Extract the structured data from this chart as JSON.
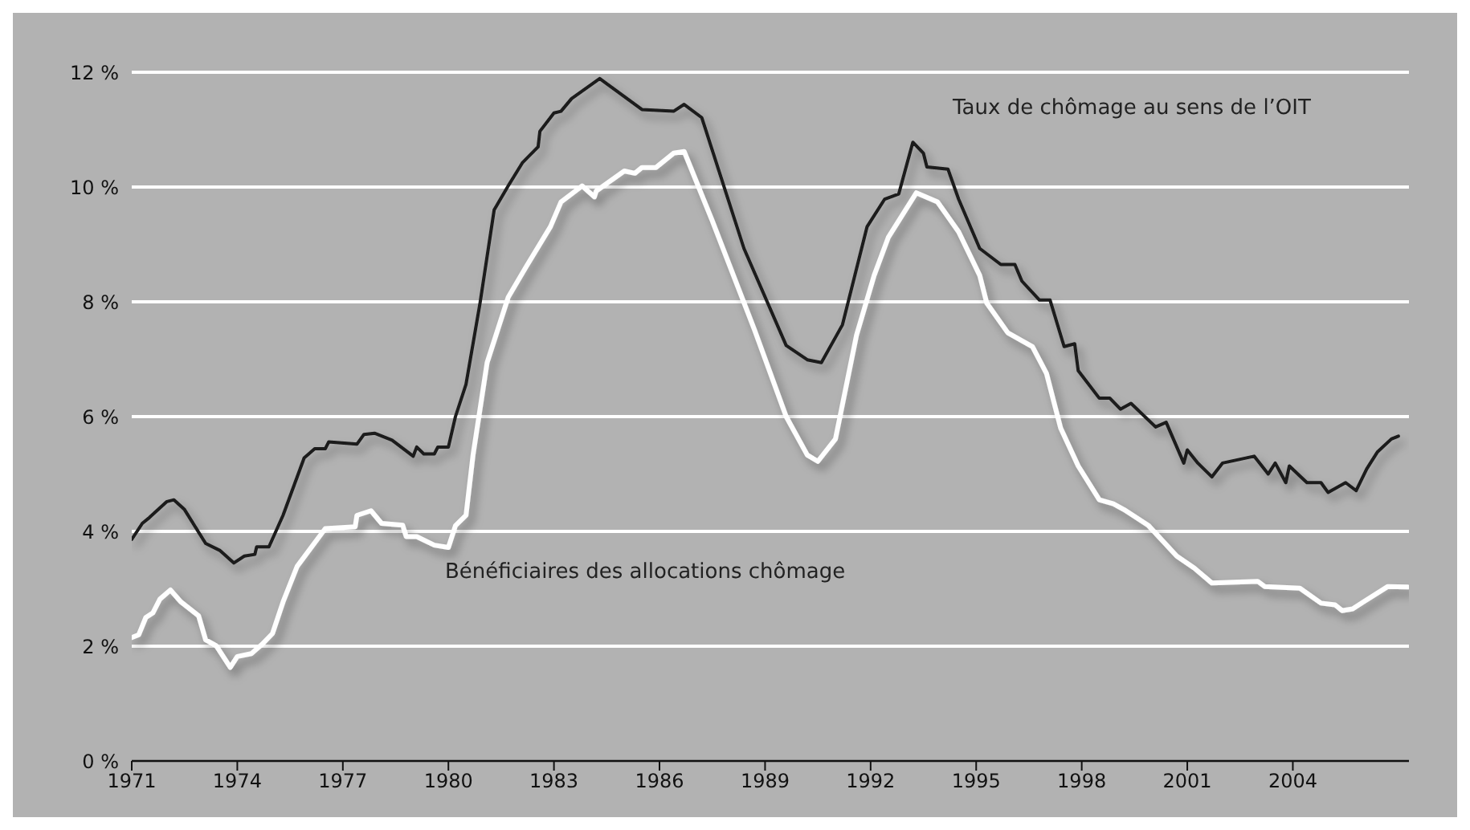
{
  "chart_data": {
    "type": "line",
    "xlim": [
      1971,
      2007.3
    ],
    "xticks": [
      1971,
      1974,
      1977,
      1980,
      1983,
      1986,
      1989,
      1992,
      1995,
      1998,
      2001,
      2004
    ],
    "ylim": [
      0,
      12
    ],
    "yticks": [
      {
        "value": 0,
        "label": "0 %"
      },
      {
        "value": 2,
        "label": "2 %"
      },
      {
        "value": 4,
        "label": "4 %"
      },
      {
        "value": 6,
        "label": "6 %"
      },
      {
        "value": 8,
        "label": "8 %"
      },
      {
        "value": 10,
        "label": "10 %"
      },
      {
        "value": 12,
        "label": "12 %"
      }
    ],
    "grid": "y",
    "legend": false,
    "marker": "none",
    "line_style": "solid",
    "annotations": [
      "Taux de chômage au sens de l’OIT",
      "Bénéficiaires des allocations chômage"
    ],
    "series": [
      {
        "color": "#1a1a1a",
        "x": [
          1971.0,
          1971.3,
          1971.5,
          1972.0,
          1972.2,
          1972.5,
          1973.1,
          1973.5,
          1973.9,
          1974.2,
          1974.5,
          1974.55,
          1974.9,
          1975.3,
          1975.9,
          1976.2,
          1976.5,
          1976.6,
          1977.4,
          1977.6,
          1977.9,
          1978.4,
          1979.0,
          1979.1,
          1979.3,
          1979.6,
          1979.7,
          1980.0,
          1980.2,
          1980.5,
          1980.9,
          1981.3,
          1981.7,
          1982.1,
          1982.55,
          1982.6,
          1983.0,
          1983.2,
          1983.5,
          1984.3,
          1985.5,
          1986.4,
          1986.7,
          1987.2,
          1988.4,
          1989.6,
          1990.2,
          1990.6,
          1991.2,
          1991.9,
          1992.4,
          1992.8,
          1993.2,
          1993.5,
          1993.6,
          1994.2,
          1994.5,
          1995.1,
          1995.7,
          1996.1,
          1996.3,
          1996.8,
          1997.1,
          1997.5,
          1997.8,
          1997.9,
          1998.5,
          1998.8,
          1999.1,
          1999.4,
          2000.1,
          2000.4,
          2000.9,
          2001.0,
          2001.3,
          2001.7,
          2002.0,
          2002.9,
          2003.3,
          2003.5,
          2003.8,
          2003.9,
          2004.4,
          2004.8,
          2005.0,
          2005.5,
          2005.8,
          2006.1,
          2006.4,
          2006.8,
          2007.0
        ],
        "values": [
          3.86,
          4.14,
          4.24,
          4.52,
          4.55,
          4.38,
          3.79,
          3.67,
          3.45,
          3.57,
          3.6,
          3.73,
          3.73,
          4.28,
          5.28,
          5.44,
          5.44,
          5.56,
          5.52,
          5.69,
          5.71,
          5.59,
          5.31,
          5.47,
          5.35,
          5.35,
          5.47,
          5.47,
          6.0,
          6.56,
          7.98,
          9.6,
          10.02,
          10.42,
          10.7,
          10.97,
          11.29,
          11.32,
          11.54,
          11.89,
          11.35,
          11.32,
          11.44,
          11.21,
          8.93,
          7.24,
          6.99,
          6.94,
          7.6,
          9.31,
          9.79,
          9.88,
          10.78,
          10.59,
          10.35,
          10.31,
          9.79,
          8.93,
          8.65,
          8.65,
          8.36,
          8.03,
          8.03,
          7.22,
          7.27,
          6.8,
          6.32,
          6.32,
          6.13,
          6.23,
          5.82,
          5.9,
          5.19,
          5.42,
          5.19,
          4.95,
          5.19,
          5.31,
          5.0,
          5.19,
          4.85,
          5.14,
          4.85,
          4.85,
          4.68,
          4.85,
          4.71,
          5.09,
          5.38,
          5.61,
          5.66
        ]
      },
      {
        "color": "#ffffff",
        "x": [
          1971.0,
          1971.2,
          1971.4,
          1971.6,
          1971.8,
          1972.1,
          1972.4,
          1972.9,
          1973.1,
          1973.4,
          1973.8,
          1974.0,
          1974.4,
          1974.7,
          1975.0,
          1975.3,
          1975.7,
          1976.5,
          1977.35,
          1977.4,
          1977.8,
          1978.1,
          1978.7,
          1978.8,
          1979.1,
          1979.6,
          1980.0,
          1980.2,
          1980.5,
          1980.7,
          1981.1,
          1981.7,
          1982.2,
          1982.9,
          1983.2,
          1983.8,
          1984.15,
          1984.2,
          1985.0,
          1985.3,
          1985.5,
          1985.9,
          1986.4,
          1986.7,
          1987.5,
          1988.7,
          1989.6,
          1990.2,
          1990.5,
          1991.0,
          1991.6,
          1992.1,
          1992.5,
          1993.3,
          1993.9,
          1994.5,
          1995.1,
          1995.3,
          1995.9,
          1996.6,
          1997.0,
          1997.4,
          1997.9,
          1998.5,
          1998.9,
          1999.2,
          1999.9,
          2000.7,
          2001.2,
          2001.7,
          2003.0,
          2003.2,
          2004.2,
          2004.8,
          2005.2,
          2005.4,
          2005.7,
          2006.0,
          2006.7,
          2007.26
        ],
        "values": [
          2.15,
          2.2,
          2.5,
          2.58,
          2.82,
          2.98,
          2.77,
          2.53,
          2.11,
          2.01,
          1.63,
          1.82,
          1.87,
          2.03,
          2.22,
          2.77,
          3.39,
          4.05,
          4.08,
          4.28,
          4.36,
          4.14,
          4.11,
          3.91,
          3.91,
          3.76,
          3.72,
          4.1,
          4.28,
          5.33,
          6.94,
          8.08,
          8.6,
          9.31,
          9.74,
          10.02,
          9.83,
          9.93,
          10.28,
          10.24,
          10.34,
          10.34,
          10.59,
          10.62,
          9.41,
          7.51,
          6.0,
          5.33,
          5.22,
          5.61,
          7.42,
          8.46,
          9.12,
          9.9,
          9.74,
          9.22,
          8.46,
          7.98,
          7.46,
          7.22,
          6.75,
          5.8,
          5.14,
          4.55,
          4.48,
          4.38,
          4.1,
          3.57,
          3.36,
          3.1,
          3.13,
          3.04,
          3.01,
          2.75,
          2.72,
          2.62,
          2.65,
          2.77,
          3.04,
          3.03
        ]
      }
    ]
  }
}
